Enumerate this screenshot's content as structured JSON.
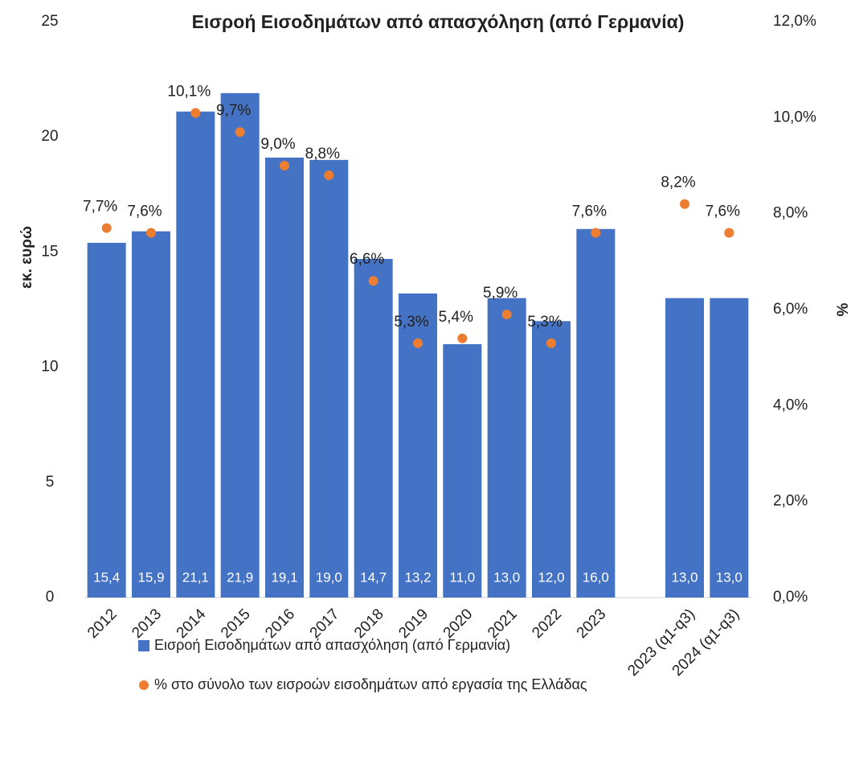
{
  "chart_data": {
    "type": "bar",
    "title": "Εισροή Εισοδημάτων από απασχόληση (από Γερμανία)",
    "ylabel": "εκ. ευρώ",
    "y2label": "%",
    "categories": [
      "2012",
      "2013",
      "2014",
      "2015",
      "2016",
      "2017",
      "2018",
      "2019",
      "2020",
      "2021",
      "2022",
      "2023",
      null,
      "2023 (q1-q3)",
      "2024 (q1-q3)"
    ],
    "series": [
      {
        "name": "Εισροή Εισοδημάτων από απασχόληση (από Γερμανία)",
        "color": "#4472c4",
        "type": "bar",
        "values": [
          15.4,
          15.9,
          21.1,
          21.9,
          19.1,
          19.0,
          14.7,
          13.2,
          11.0,
          13.0,
          12.0,
          16.0,
          null,
          13.0,
          13.0
        ],
        "value_labels": [
          "15,4",
          "15,9",
          "21,1",
          "21,9",
          "19,1",
          "19,0",
          "14,7",
          "13,2",
          "11,0",
          "13,0",
          "12,0",
          "16,0",
          null,
          "13,0",
          "13,0"
        ]
      },
      {
        "name": "% στο σύνολο των εισροών εισοδημάτων από εργασία της Ελλάδας",
        "color": "#ed7d31",
        "type": "scatter",
        "axis": "y2",
        "values": [
          7.7,
          7.6,
          10.1,
          9.7,
          9.0,
          8.8,
          6.6,
          5.3,
          5.4,
          5.9,
          5.3,
          7.6,
          null,
          8.2,
          7.6
        ],
        "value_labels": [
          "7,7%",
          "7,6%",
          "10,1%",
          "9,7%",
          "9,0%",
          "8,8%",
          "6,6%",
          "5,3%",
          "5,4%",
          "5,9%",
          "5,3%",
          "7,6%",
          null,
          "8,2%",
          "7,6%"
        ]
      }
    ],
    "ylim": [
      0,
      25
    ],
    "yticks": [
      0,
      5,
      10,
      15,
      20,
      25
    ],
    "y2lim": [
      0,
      12
    ],
    "y2ticks": [
      {
        "value": 0,
        "label": "0,0%"
      },
      {
        "value": 2,
        "label": "2,0%"
      },
      {
        "value": 4,
        "label": "4,0%"
      },
      {
        "value": 6,
        "label": "6,0%"
      },
      {
        "value": 8,
        "label": "8,0%"
      },
      {
        "value": 10,
        "label": "10,0%"
      },
      {
        "value": 12,
        "label": "12,0%"
      }
    ],
    "grid": false,
    "legend": "bottom"
  }
}
